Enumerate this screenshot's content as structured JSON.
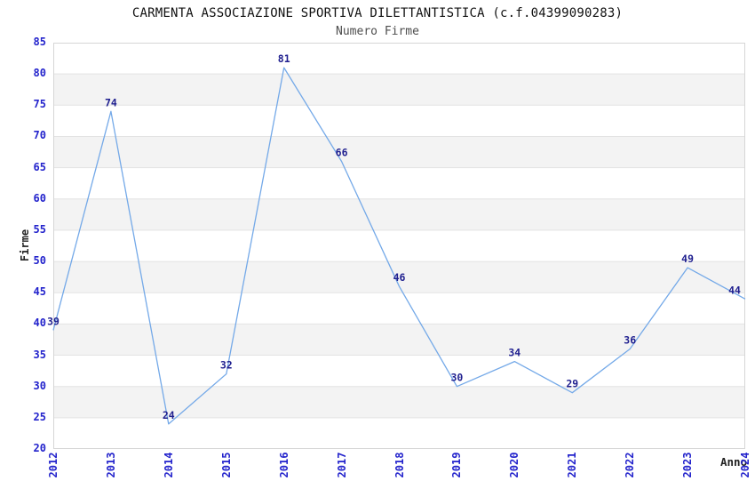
{
  "chart_data": {
    "type": "line",
    "title": "CARMENTA ASSOCIAZIONE SPORTIVA DILETTANTISTICA (c.f.04399090283)",
    "subtitle": "Numero Firme",
    "xlabel": "Anno",
    "ylabel": "Firme",
    "categories": [
      "2012",
      "2013",
      "2014",
      "2015",
      "2016",
      "2017",
      "2018",
      "2019",
      "2020",
      "2021",
      "2022",
      "2023",
      "2024"
    ],
    "values": [
      39,
      74,
      24,
      32,
      81,
      66,
      46,
      30,
      34,
      29,
      36,
      49,
      44
    ],
    "ylim": [
      20,
      85
    ],
    "ytick_step": 5,
    "yticks": [
      20,
      25,
      30,
      35,
      40,
      45,
      50,
      55,
      60,
      65,
      70,
      75,
      80,
      85
    ],
    "grid": "horizontal gridlines with alternating shaded bands",
    "legend": "none",
    "point_labels_shown": true,
    "colors": {
      "line": "#74a9e8",
      "value_label": "#1f1f8f",
      "tick_label": "#2323cc",
      "band": "#f3f3f3",
      "grid": "#e3e3e3",
      "border": "#d6d6d6",
      "title": "#111111",
      "subtitle": "#4d4d4d",
      "axis_title": "#222222",
      "background": "#ffffff"
    }
  }
}
